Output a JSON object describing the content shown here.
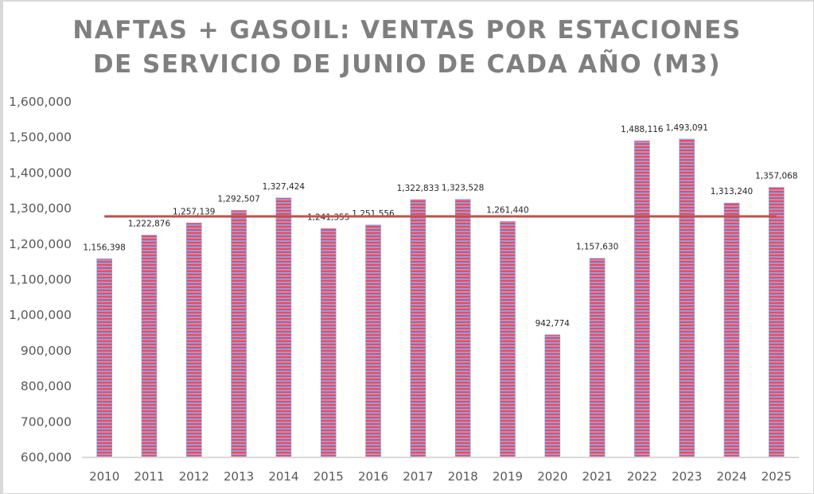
{
  "chart_data": {
    "type": "bar",
    "title_lines": [
      "NAFTAS + GASOIL: VENTAS POR ESTACIONES",
      "DE SERVICIO DE JUNIO DE CADA AÑO (M3)"
    ],
    "xlabel": "",
    "ylabel": "",
    "categories": [
      "2010",
      "2011",
      "2012",
      "2013",
      "2014",
      "2015",
      "2016",
      "2017",
      "2018",
      "2019",
      "2020",
      "2021",
      "2022",
      "2023",
      "2024",
      "2025"
    ],
    "values": [
      1156398,
      1222876,
      1257139,
      1292507,
      1327424,
      1241355,
      1251556,
      1322833,
      1323528,
      1261440,
      942774,
      1157630,
      1488116,
      1493091,
      1313240,
      1357068
    ],
    "data_labels": [
      "1,156,398",
      "1,222,876",
      "1,257,139",
      "1,292,507",
      "1,327,424",
      "1,241,355",
      "1,251,556",
      "1,322,833",
      "1,323,528",
      "1,261,440",
      "942,774",
      "1,157,630",
      "1,488,116",
      "1,493,091",
      "1,313,240",
      "1,357,068"
    ],
    "ylim": [
      600000,
      1600000
    ],
    "yticks": [
      600000,
      700000,
      800000,
      900000,
      1000000,
      1100000,
      1200000,
      1300000,
      1400000,
      1500000,
      1600000
    ],
    "ytick_labels": [
      "600,000",
      "700,000",
      "800,000",
      "900,000",
      "1,000,000",
      "1,100,000",
      "1,200,000",
      "1,300,000",
      "1,400,000",
      "1,500,000",
      "1,600,000"
    ],
    "average_line": {
      "value": 1275561,
      "color": "#c0504d"
    },
    "grid": false,
    "legend": "none",
    "colors": {
      "bar_red": "#e8485a",
      "bar_blue": "#8a8ed0",
      "title": "#7f7f7f",
      "axis": "#d9d9d9",
      "tick_text": "#595959"
    }
  }
}
